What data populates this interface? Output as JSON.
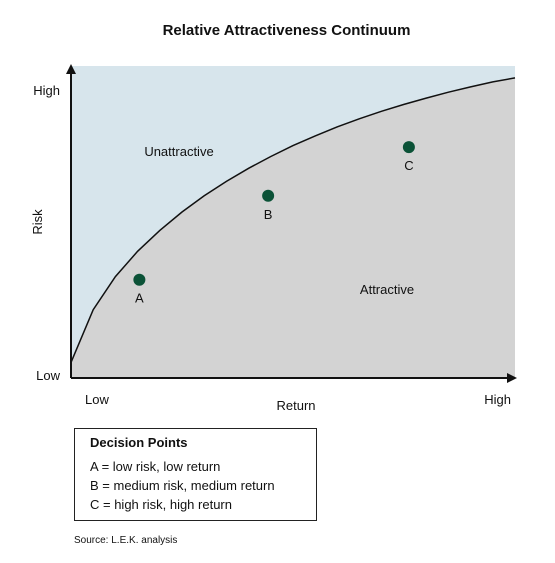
{
  "chart_data": {
    "type": "line",
    "title": "Relative Attractiveness Continuum",
    "xlabel": "Return",
    "ylabel": "Risk",
    "x_tick_labels": [
      "Low",
      "High"
    ],
    "y_tick_labels": [
      "Low",
      "High"
    ],
    "xlim": [
      0,
      100
    ],
    "ylim": [
      0,
      100
    ],
    "regions": [
      "Unattractive",
      "Attractive"
    ],
    "curve": {
      "x": [
        0,
        5,
        10,
        15,
        20,
        25,
        30,
        35,
        40,
        45,
        50,
        55,
        60,
        65,
        70,
        75,
        80,
        85,
        90,
        95,
        100
      ],
      "y": [
        5.0,
        21.9,
        32.5,
        40.6,
        47.3,
        53.2,
        58.4,
        63.0,
        67.2,
        71.0,
        74.5,
        77.6,
        80.5,
        83.1,
        85.5,
        87.7,
        89.7,
        91.6,
        93.3,
        94.9,
        96.2
      ]
    },
    "points": [
      {
        "label": "A",
        "x": 15.4,
        "y": 31.5
      },
      {
        "label": "B",
        "x": 44.4,
        "y": 58.4
      },
      {
        "label": "C",
        "x": 76.1,
        "y": 74.0
      }
    ],
    "colors": {
      "unattractive_fill": "#d7e5ec",
      "attractive_fill": "#d3d3d3",
      "curve": "#111111",
      "point": "#0b5237",
      "axis": "#111111"
    },
    "grid": false
  },
  "legend": {
    "title": "Decision Points",
    "items": [
      "A = low risk, low return",
      "B = medium risk, medium return",
      "C = high risk, high return"
    ]
  },
  "source": "Source: L.E.K. analysis"
}
